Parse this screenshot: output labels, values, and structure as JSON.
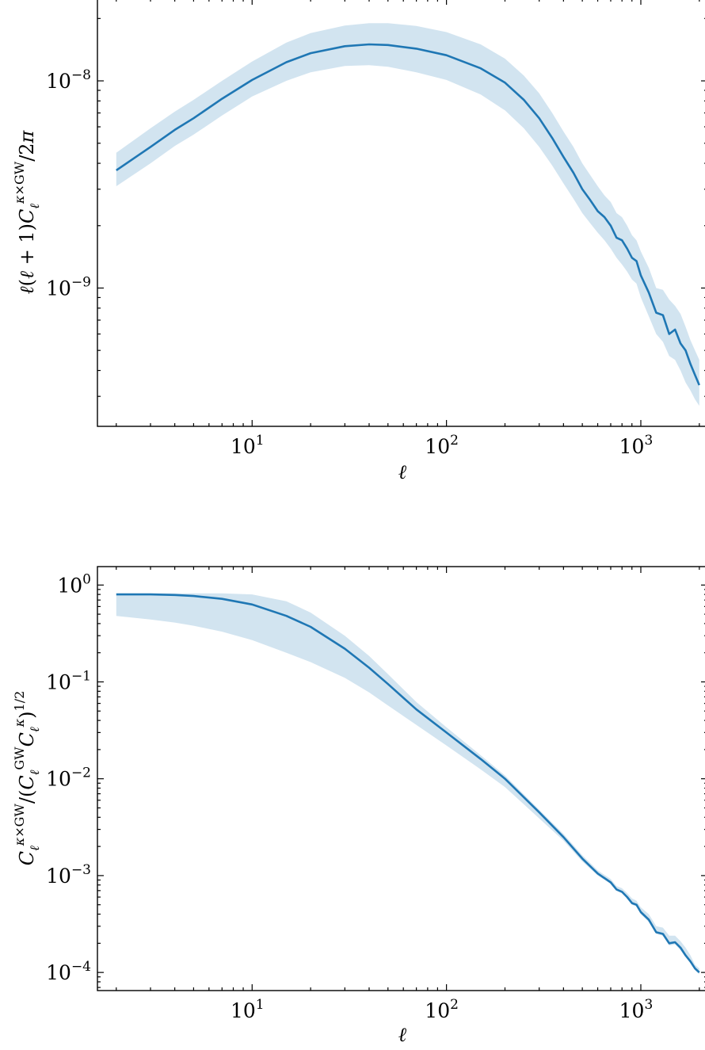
{
  "chart_data": [
    {
      "type": "line",
      "xscale": "log",
      "yscale": "log",
      "xlim": [
        1.6,
        2200
      ],
      "ylim": [
        2.15e-10,
        2.5e-08
      ],
      "xlabel": "ℓ",
      "ylabel": "ℓ(ℓ + 1)C_ℓ^{κ×GW}/2π",
      "x_ticks": [
        {
          "base": "10",
          "exp": "1",
          "value": 10
        },
        {
          "base": "10",
          "exp": "2",
          "value": 100
        },
        {
          "base": "10",
          "exp": "3",
          "value": 1000
        }
      ],
      "y_ticks": [
        {
          "base": "10",
          "exp": "−8",
          "value": 1e-08
        },
        {
          "base": "10",
          "exp": "−9",
          "value": 1e-09
        }
      ],
      "series": [
        {
          "x": [
            2,
            3,
            4,
            5,
            7,
            10,
            15,
            20,
            30,
            40,
            50,
            70,
            100,
            150,
            200,
            250,
            300,
            350,
            400,
            450,
            500,
            550,
            600,
            650,
            700,
            750,
            800,
            850,
            900,
            950,
            1000,
            1100,
            1200,
            1300,
            1400,
            1500,
            1600,
            1700,
            1800,
            1900,
            2000
          ],
          "y": [
            3.7e-09,
            4.8e-09,
            5.8e-09,
            6.6e-09,
            8.2e-09,
            1.01e-08,
            1.23e-08,
            1.36e-08,
            1.47e-08,
            1.5e-08,
            1.49e-08,
            1.43e-08,
            1.33e-08,
            1.15e-08,
            9.8e-09,
            8.1e-09,
            6.6e-09,
            5.3e-09,
            4.3e-09,
            3.6e-09,
            3e-09,
            2.65e-09,
            2.35e-09,
            2.2e-09,
            2e-09,
            1.75e-09,
            1.7e-09,
            1.55e-09,
            1.4e-09,
            1.35e-09,
            1.15e-09,
            9.5e-10,
            7.6e-10,
            7.4e-10,
            6e-10,
            6.3e-10,
            5.4e-10,
            5e-10,
            4.3e-10,
            3.8e-10,
            3.4e-10
          ],
          "lower": [
            3.1e-09,
            4e-09,
            4.85e-09,
            5.5e-09,
            6.8e-09,
            8.4e-09,
            1e-08,
            1.1e-08,
            1.18e-08,
            1.19e-08,
            1.17e-08,
            1.1e-08,
            1.01e-08,
            8.6e-09,
            7.2e-09,
            5.9e-09,
            4.8e-09,
            3.9e-09,
            3.2e-09,
            2.7e-09,
            2.3e-09,
            2.05e-09,
            1.85e-09,
            1.7e-09,
            1.55e-09,
            1.4e-09,
            1.3e-09,
            1.2e-09,
            1.1e-09,
            1.05e-09,
            9e-10,
            7.3e-10,
            6e-10,
            5.5e-10,
            4.7e-10,
            4.5e-10,
            4e-10,
            3.5e-10,
            3.2e-10,
            2.9e-10,
            2.7e-10
          ],
          "upper": [
            4.5e-09,
            5.9e-09,
            7.1e-09,
            8.1e-09,
            1e-08,
            1.24e-08,
            1.53e-08,
            1.7e-08,
            1.85e-08,
            1.9e-08,
            1.9e-08,
            1.84e-08,
            1.72e-08,
            1.5e-08,
            1.28e-08,
            1.06e-08,
            8.7e-09,
            7e-09,
            5.7e-09,
            4.8e-09,
            4e-09,
            3.5e-09,
            3.1e-09,
            2.8e-09,
            2.6e-09,
            2.3e-09,
            2.2e-09,
            2e-09,
            1.8e-09,
            1.7e-09,
            1.5e-09,
            1.25e-09,
            1e-09,
            9.8e-10,
            8.8e-10,
            8.2e-10,
            7.5e-10,
            6.5e-10,
            5.6e-10,
            5e-10,
            4.5e-10
          ]
        }
      ]
    },
    {
      "type": "line",
      "xscale": "log",
      "yscale": "log",
      "xlim": [
        1.6,
        2200
      ],
      "ylim": [
        6.5e-05,
        1.55
      ],
      "xlabel": "ℓ",
      "ylabel": "C_ℓ^{κ×GW}/(C_ℓ^{GW}C_ℓ^{κ})^{1/2}",
      "x_ticks": [
        {
          "base": "10",
          "exp": "1",
          "value": 10
        },
        {
          "base": "10",
          "exp": "2",
          "value": 100
        },
        {
          "base": "10",
          "exp": "3",
          "value": 1000
        }
      ],
      "y_ticks": [
        {
          "base": "10",
          "exp": "0",
          "value": 1
        },
        {
          "base": "10",
          "exp": "−1",
          "value": 0.1
        },
        {
          "base": "10",
          "exp": "−2",
          "value": 0.01
        },
        {
          "base": "10",
          "exp": "−3",
          "value": 0.001
        },
        {
          "base": "10",
          "exp": "−4",
          "value": 0.0001
        }
      ],
      "series": [
        {
          "x": [
            2,
            3,
            4,
            5,
            7,
            10,
            15,
            20,
            30,
            40,
            50,
            70,
            100,
            150,
            200,
            300,
            400,
            500,
            600,
            700,
            750,
            800,
            850,
            900,
            950,
            1000,
            1100,
            1200,
            1300,
            1400,
            1500,
            1600,
            1700,
            1800,
            1900,
            2000
          ],
          "y": [
            0.8,
            0.8,
            0.79,
            0.77,
            0.72,
            0.63,
            0.48,
            0.37,
            0.22,
            0.14,
            0.095,
            0.052,
            0.03,
            0.016,
            0.01,
            0.0045,
            0.0025,
            0.0015,
            0.00105,
            0.00085,
            0.00072,
            0.00068,
            0.0006,
            0.00052,
            0.0005,
            0.00042,
            0.00035,
            0.00026,
            0.00025,
            0.0002,
            0.000205,
            0.00018,
            0.00015,
            0.00013,
            0.00011,
            0.0001
          ],
          "lower": [
            0.48,
            0.44,
            0.41,
            0.38,
            0.33,
            0.27,
            0.2,
            0.16,
            0.11,
            0.078,
            0.057,
            0.036,
            0.022,
            0.0125,
            0.0082,
            0.0039,
            0.0023,
            0.0014,
            0.001,
            0.00082,
            0.0007,
            0.00066,
            0.00058,
            0.0005,
            0.00048,
            0.0004,
            0.00033,
            0.00025,
            0.00024,
            0.00019,
            0.000195,
            0.00017,
            0.000145,
            0.000125,
            0.000105,
            9.6e-05
          ],
          "upper": [
            0.82,
            0.82,
            0.82,
            0.82,
            0.82,
            0.8,
            0.68,
            0.52,
            0.3,
            0.185,
            0.12,
            0.062,
            0.034,
            0.0175,
            0.0108,
            0.0048,
            0.0027,
            0.00162,
            0.00113,
            0.00092,
            0.00078,
            0.00074,
            0.00066,
            0.00058,
            0.00055,
            0.00047,
            0.0004,
            0.0003,
            0.00029,
            0.00024,
            0.00024,
            0.00021,
            0.00018,
            0.00015,
            0.00012,
            0.00011
          ]
        }
      ]
    }
  ]
}
